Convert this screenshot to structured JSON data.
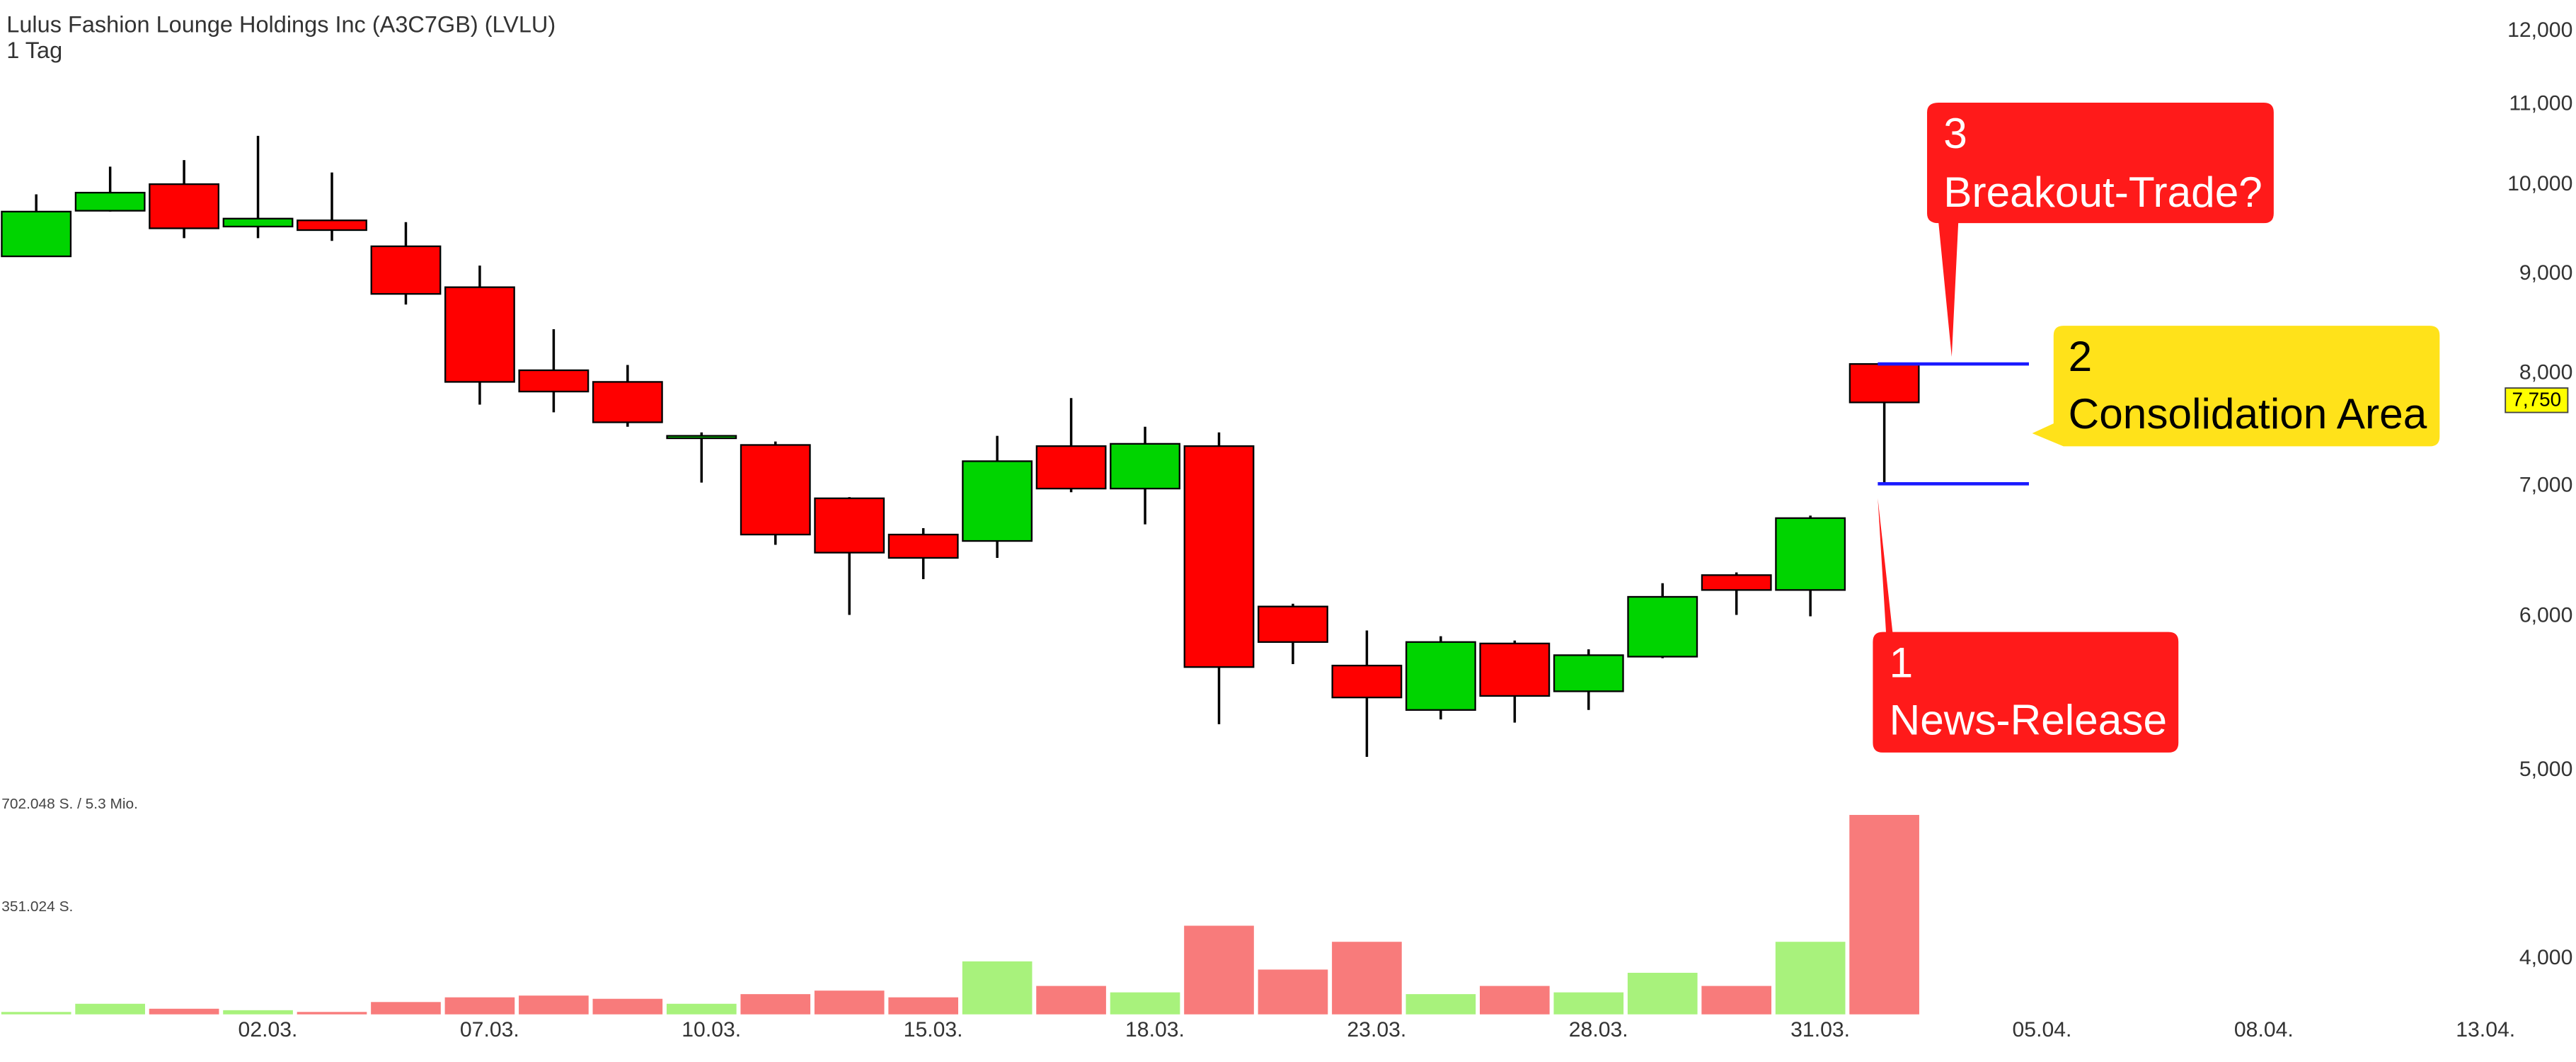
{
  "chart_data": {
    "type": "candlestick",
    "title": "Lulus Fashion Lounge Holdings Inc (A3C7GB) (LVLU)",
    "subtitle": "1 Tag",
    "x": [
      0,
      1,
      2,
      3,
      4,
      5,
      6,
      7,
      8,
      9,
      10,
      11,
      12,
      13,
      14,
      15,
      16,
      17,
      18,
      19,
      20,
      21,
      22,
      23,
      24,
      25
    ],
    "open": [
      9190,
      9700,
      10010,
      9520,
      9590,
      9300,
      8860,
      8030,
      7920,
      7420,
      7350,
      6900,
      6610,
      6560,
      7340,
      6980,
      7340,
      6070,
      5660,
      5370,
      5810,
      5490,
      5720,
      6300,
      6190,
      8090
    ],
    "high": [
      9890,
      10220,
      10300,
      10600,
      10150,
      9570,
      9090,
      8430,
      8080,
      7460,
      7380,
      6910,
      6660,
      7430,
      7770,
      7510,
      7460,
      6090,
      5900,
      5860,
      5830,
      5770,
      6240,
      6320,
      6760,
      8090
    ],
    "low": [
      9190,
      9690,
      9390,
      9390,
      9360,
      8680,
      7710,
      7640,
      7510,
      7030,
      6530,
      6010,
      6270,
      6430,
      6950,
      6690,
      5280,
      5670,
      5080,
      5310,
      5290,
      5370,
      5710,
      6010,
      6000,
      7020
    ],
    "close": [
      9690,
      9910,
      9500,
      9610,
      9480,
      8790,
      7920,
      7830,
      7550,
      7430,
      6610,
      6470,
      6430,
      7210,
      6980,
      7360,
      5650,
      5820,
      5450,
      5820,
      5460,
      5730,
      6140,
      6190,
      6740,
      7730
    ],
    "up_color": "#00d400",
    "down_color": "#ff0000",
    "log_scale": true,
    "ylim": [
      3750,
      12450
    ],
    "yticks": [
      {
        "value": 4000,
        "label": "4,000"
      },
      {
        "value": 5000,
        "label": "5,000"
      },
      {
        "value": 6000,
        "label": "6,000"
      },
      {
        "value": 7000,
        "label": "7,000"
      },
      {
        "value": 8000,
        "label": "8,000"
      },
      {
        "value": 9000,
        "label": "9,000"
      },
      {
        "value": 10000,
        "label": "10,000"
      },
      {
        "value": 11000,
        "label": "11,000"
      },
      {
        "value": 12000,
        "label": "12,000"
      }
    ],
    "xlim": [
      -0.49,
      33.29
    ],
    "xticks": [
      {
        "value": 3,
        "label": "02.03."
      },
      {
        "value": 6,
        "label": "07.03."
      },
      {
        "value": 9,
        "label": "10.03."
      },
      {
        "value": 12,
        "label": "15.03."
      },
      {
        "value": 15,
        "label": "18.03."
      },
      {
        "value": 18,
        "label": "23.03."
      },
      {
        "value": 21,
        "label": "28.03."
      },
      {
        "value": 24,
        "label": "31.03."
      },
      {
        "value": 27,
        "label": "05.04."
      },
      {
        "value": 30,
        "label": "08.04."
      },
      {
        "value": 33,
        "label": "13.04."
      }
    ],
    "volume": {
      "values": [
        11000,
        39000,
        22000,
        17000,
        11000,
        45000,
        61000,
        67000,
        56000,
        39000,
        72000,
        84000,
        61000,
        184000,
        100000,
        78000,
        306000,
        156000,
        251000,
        72000,
        100000,
        78000,
        145000,
        100000,
        251000,
        685000
      ],
      "up_color": "#a8f27c",
      "down_color": "#f87b7b",
      "ylim": [
        0,
        702048
      ],
      "yticks": [
        {
          "value": 702048,
          "label": "702.048 S. / 5.3 Mio."
        },
        {
          "value": 351024,
          "label": "351.024 S."
        }
      ]
    },
    "last_price": {
      "value": 7750,
      "label": "7,750"
    },
    "levels": [
      8090,
      7020
    ],
    "level_color": "#1a1aff",
    "annotations": [
      {
        "number": "3",
        "text": "Breakout-Trade?",
        "color": "#ff1a1a"
      },
      {
        "number": "2",
        "text": "Consolidation Area",
        "color": "#ffe21a"
      },
      {
        "number": "1",
        "text": "News-Release",
        "color": "#ff1a1a"
      }
    ]
  }
}
